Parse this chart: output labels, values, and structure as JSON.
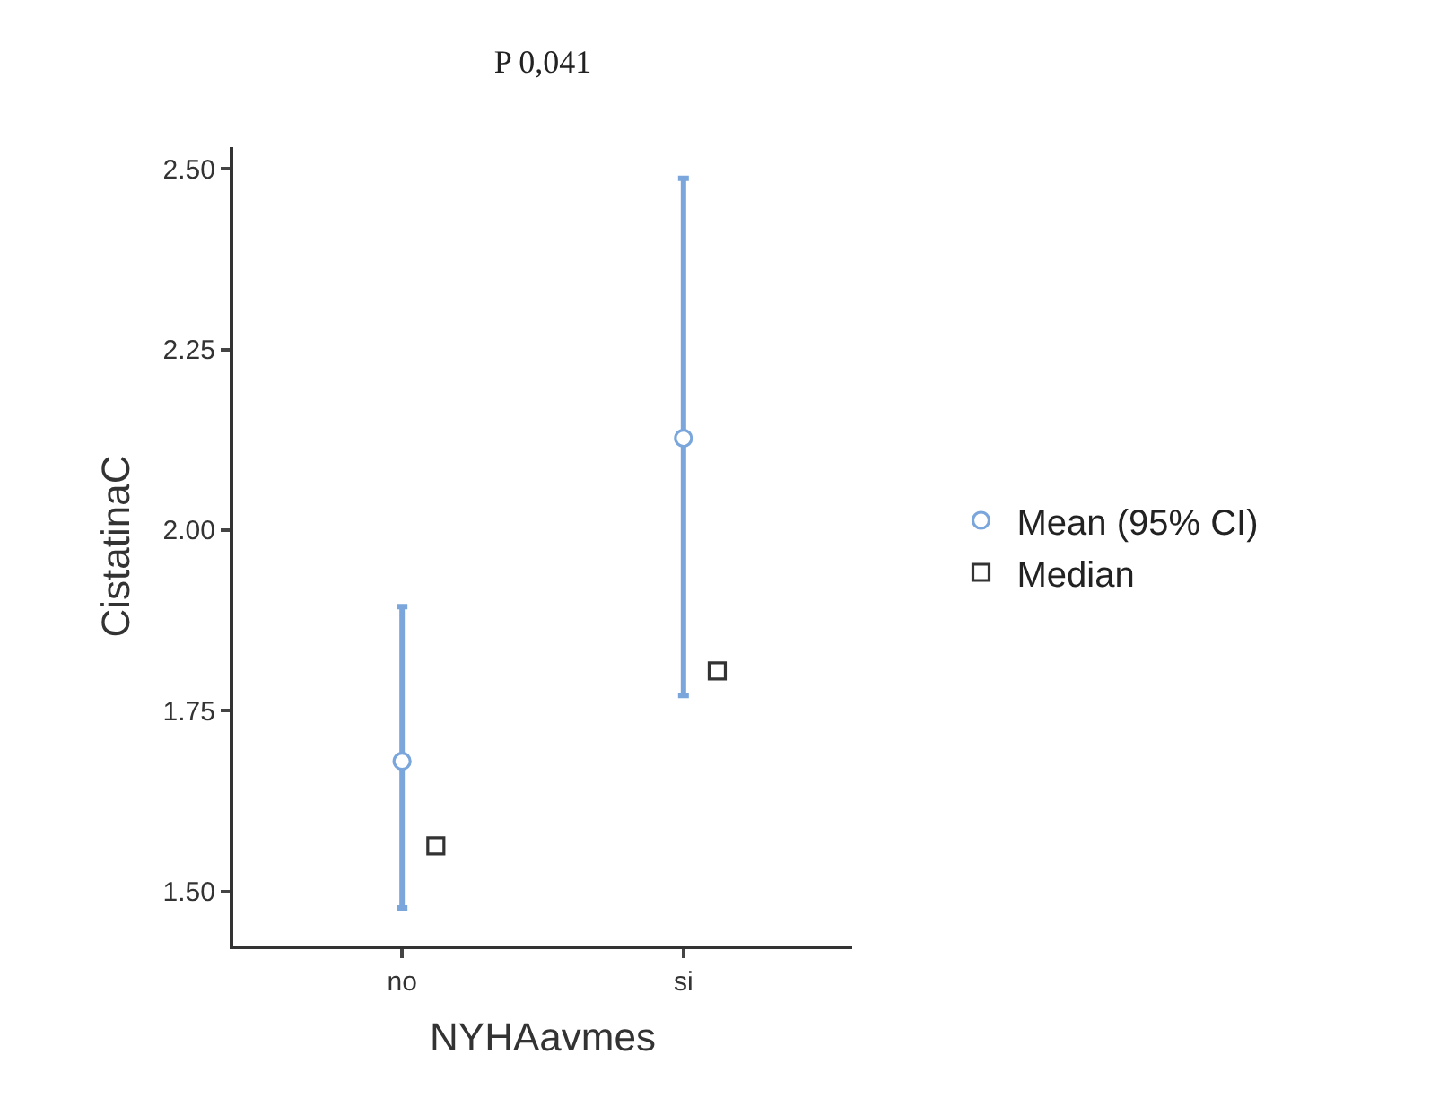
{
  "chart_data": {
    "type": "scatter",
    "title": "P 0,041",
    "xlabel": "NYHAavmes",
    "ylabel": "CistatinaC",
    "categories": [
      "no",
      "si"
    ],
    "series": [
      {
        "name": "Mean (95% CI)",
        "color": "#7aa6dc",
        "marker": "circle",
        "values": [
          1.68,
          2.127
        ],
        "errors": [
          [
            1.477,
            1.894
          ],
          [
            1.771,
            2.487
          ]
        ]
      },
      {
        "name": "Median",
        "color": "#333333",
        "marker": "square",
        "values": [
          1.563,
          1.805
        ]
      }
    ],
    "ylim": [
      1.425,
      2.53
    ],
    "yticks": [
      {
        "value": 1.5,
        "label": "1.50"
      },
      {
        "value": 1.75,
        "label": "1.75"
      },
      {
        "value": 2,
        "label": "2.00"
      },
      {
        "value": 2.25,
        "label": "2.25"
      },
      {
        "value": 2.5,
        "label": "2.50"
      }
    ],
    "grid": false,
    "legend": "right"
  }
}
